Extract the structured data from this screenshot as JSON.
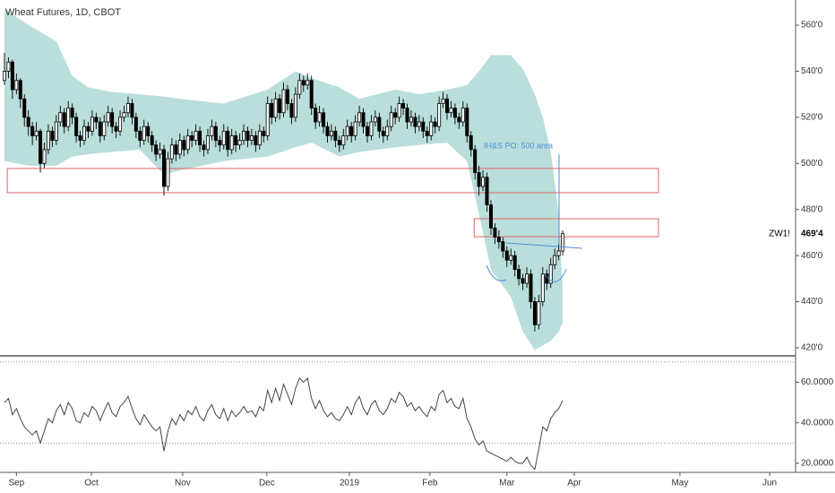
{
  "chart_data": [
    {
      "type": "candlestick",
      "title": "Wheat Futures, 1D, CBOT",
      "up_color": "#ffffff",
      "down_color": "#000000",
      "wick_color": "#000000",
      "band_color": "#b9dedb",
      "zone_color": "#e06666",
      "xlim": [
        -1.12,
        198.4
      ],
      "xticks": [
        {
          "value": 3,
          "label": "Sep"
        },
        {
          "value": 21.8,
          "label": "Oct"
        },
        {
          "value": 44.7,
          "label": "Nov"
        },
        {
          "value": 65.8,
          "label": "Dec"
        },
        {
          "value": 86.5,
          "label": "2019"
        },
        {
          "value": 106.7,
          "label": "Feb"
        },
        {
          "value": 126,
          "label": "Mar"
        },
        {
          "value": 142.9,
          "label": "Apr"
        },
        {
          "value": 169.4,
          "label": "May"
        },
        {
          "value": 191.9,
          "label": "Jun"
        }
      ],
      "ylim": [
        416.5,
        570.9
      ],
      "yticks": [
        {
          "value": 560,
          "label": "560'0"
        },
        {
          "value": 540,
          "label": "540'0"
        },
        {
          "value": 520,
          "label": "520'0"
        },
        {
          "value": 500,
          "label": "500'0"
        },
        {
          "value": 480,
          "label": "480'0"
        },
        {
          "value": 460,
          "label": "460'0"
        },
        {
          "value": 440,
          "label": "440'0"
        },
        {
          "value": 420,
          "label": "420'0"
        }
      ],
      "last": {
        "symbol": "ZW1!",
        "value": 469.5,
        "label": "469'4"
      },
      "annotation": "IH&S PO: 500 area",
      "zones": [
        {
          "from": 0.7,
          "to": 164,
          "top": 497.8,
          "bottom": 487.3
        },
        {
          "from": 117.8,
          "to": 164,
          "top": 476,
          "bottom": 468.2
        }
      ],
      "band": {
        "x": [
          0,
          6,
          13,
          17,
          21,
          27,
          34,
          40,
          44,
          55,
          66,
          73,
          77,
          84,
          89,
          98,
          104,
          111,
          116,
          119,
          122,
          127,
          130,
          133,
          135,
          137,
          139,
          140
        ],
        "upper": [
          567,
          560,
          553,
          538,
          533,
          531,
          530,
          529,
          528,
          526,
          532,
          540,
          537,
          533,
          528,
          532,
          530,
          532,
          534,
          540,
          547,
          547,
          541,
          530,
          520,
          505,
          478,
          445
        ],
        "lower": [
          501,
          499,
          499,
          503,
          504,
          505,
          506,
          495,
          497,
          501,
          503,
          507,
          509,
          503,
          505,
          507,
          508,
          509,
          501,
          478,
          454,
          442,
          427,
          419,
          421,
          423,
          427,
          431
        ]
      },
      "candles": [
        [
          536,
          548,
          534,
          540
        ],
        [
          540,
          546,
          537,
          544
        ],
        [
          544,
          545,
          528,
          532
        ],
        [
          532,
          539,
          530,
          536
        ],
        [
          536,
          537,
          524,
          528
        ],
        [
          528,
          530,
          516,
          520
        ],
        [
          520,
          523,
          512,
          516
        ],
        [
          516,
          518,
          508,
          512
        ],
        [
          512,
          518,
          510,
          514
        ],
        [
          514,
          515,
          496,
          500
        ],
        [
          500,
          509,
          498,
          506
        ],
        [
          506,
          517,
          504,
          514
        ],
        [
          514,
          516,
          507,
          510
        ],
        [
          510,
          521,
          508,
          518
        ],
        [
          518,
          525,
          516,
          522
        ],
        [
          522,
          524,
          513,
          516
        ],
        [
          516,
          527,
          514,
          524
        ],
        [
          524,
          526,
          517,
          520
        ],
        [
          520,
          522,
          509,
          512
        ],
        [
          512,
          514,
          507,
          510
        ],
        [
          510,
          519,
          508,
          516
        ],
        [
          516,
          518,
          511,
          514
        ],
        [
          514,
          523,
          512,
          520
        ],
        [
          520,
          522,
          515,
          518
        ],
        [
          518,
          520,
          509,
          512
        ],
        [
          512,
          521,
          510,
          518
        ],
        [
          518,
          525,
          516,
          522
        ],
        [
          522,
          524,
          513,
          516
        ],
        [
          516,
          518,
          511,
          514
        ],
        [
          514,
          523,
          512,
          520
        ],
        [
          520,
          525,
          518,
          522
        ],
        [
          522,
          529,
          520,
          526
        ],
        [
          526,
          528,
          517,
          520
        ],
        [
          520,
          522,
          511,
          514
        ],
        [
          514,
          516,
          507,
          510
        ],
        [
          510,
          519,
          508,
          516
        ],
        [
          516,
          518,
          509,
          512
        ],
        [
          512,
          514,
          505,
          508
        ],
        [
          508,
          510,
          501,
          504
        ],
        [
          504,
          509,
          502,
          506
        ],
        [
          506,
          508,
          486,
          490
        ],
        [
          490,
          505,
          488,
          502
        ],
        [
          502,
          511,
          500,
          508
        ],
        [
          508,
          510,
          501,
          504
        ],
        [
          504,
          513,
          502,
          510
        ],
        [
          510,
          512,
          503,
          506
        ],
        [
          506,
          515,
          504,
          512
        ],
        [
          512,
          514,
          507,
          510
        ],
        [
          510,
          517,
          508,
          514
        ],
        [
          514,
          516,
          505,
          508
        ],
        [
          508,
          510,
          503,
          506
        ],
        [
          506,
          515,
          504,
          512
        ],
        [
          512,
          519,
          510,
          516
        ],
        [
          516,
          518,
          507,
          510
        ],
        [
          510,
          512,
          505,
          508
        ],
        [
          508,
          517,
          506,
          514
        ],
        [
          514,
          516,
          503,
          506
        ],
        [
          506,
          515,
          504,
          512
        ],
        [
          512,
          514,
          505,
          508
        ],
        [
          508,
          513,
          506,
          510
        ],
        [
          510,
          517,
          508,
          514
        ],
        [
          514,
          516,
          507,
          510
        ],
        [
          510,
          515,
          508,
          512
        ],
        [
          512,
          514,
          505,
          508
        ],
        [
          508,
          517,
          506,
          514
        ],
        [
          514,
          516,
          509,
          512
        ],
        [
          512,
          529,
          510,
          526
        ],
        [
          526,
          528,
          517,
          520
        ],
        [
          520,
          531,
          518,
          528
        ],
        [
          528,
          530,
          519,
          522
        ],
        [
          522,
          535,
          520,
          532
        ],
        [
          532,
          534,
          523,
          526
        ],
        [
          526,
          528,
          517,
          520
        ],
        [
          520,
          533,
          518,
          530
        ],
        [
          530,
          539,
          528,
          536
        ],
        [
          536,
          538,
          531,
          534
        ],
        [
          534,
          539,
          532,
          536
        ],
        [
          536,
          538,
          521,
          524
        ],
        [
          524,
          526,
          515,
          518
        ],
        [
          518,
          525,
          516,
          522
        ],
        [
          522,
          524,
          513,
          516
        ],
        [
          516,
          518,
          509,
          512
        ],
        [
          512,
          517,
          510,
          514
        ],
        [
          514,
          516,
          507,
          510
        ],
        [
          510,
          512,
          505,
          508
        ],
        [
          508,
          515,
          506,
          512
        ],
        [
          512,
          519,
          510,
          516
        ],
        [
          516,
          518,
          509,
          512
        ],
        [
          512,
          521,
          510,
          518
        ],
        [
          518,
          525,
          516,
          522
        ],
        [
          522,
          524,
          513,
          516
        ],
        [
          516,
          518,
          509,
          512
        ],
        [
          512,
          521,
          510,
          518
        ],
        [
          518,
          523,
          516,
          520
        ],
        [
          520,
          522,
          511,
          514
        ],
        [
          514,
          516,
          509,
          512
        ],
        [
          512,
          519,
          510,
          516
        ],
        [
          516,
          525,
          514,
          522
        ],
        [
          522,
          524,
          517,
          520
        ],
        [
          520,
          529,
          518,
          526
        ],
        [
          526,
          528,
          521,
          524
        ],
        [
          524,
          526,
          515,
          518
        ],
        [
          518,
          523,
          516,
          520
        ],
        [
          520,
          522,
          513,
          516
        ],
        [
          516,
          521,
          514,
          518
        ],
        [
          518,
          520,
          511,
          514
        ],
        [
          514,
          516,
          509,
          512
        ],
        [
          512,
          521,
          510,
          518
        ],
        [
          518,
          520,
          513,
          516
        ],
        [
          516,
          529,
          514,
          526
        ],
        [
          526,
          531,
          524,
          528
        ],
        [
          528,
          530,
          519,
          522
        ],
        [
          522,
          527,
          520,
          524
        ],
        [
          524,
          526,
          517,
          520
        ],
        [
          520,
          522,
          515,
          518
        ],
        [
          518,
          527,
          516,
          524
        ],
        [
          524,
          526,
          509,
          512
        ],
        [
          512,
          514,
          503,
          506
        ],
        [
          506,
          508,
          493,
          496
        ],
        [
          496,
          499,
          486,
          490
        ],
        [
          490,
          497,
          488,
          494
        ],
        [
          494,
          496,
          479,
          482
        ],
        [
          482,
          484,
          469,
          472
        ],
        [
          472,
          474,
          465,
          468
        ],
        [
          468,
          471,
          463,
          466
        ],
        [
          466,
          468,
          459,
          462
        ],
        [
          462,
          464,
          455,
          458
        ],
        [
          458,
          463,
          456,
          460
        ],
        [
          460,
          462,
          451,
          454
        ],
        [
          454,
          456,
          447,
          450
        ],
        [
          450,
          452,
          445,
          448
        ],
        [
          448,
          455,
          446,
          452
        ],
        [
          452,
          454,
          437,
          440
        ],
        [
          440,
          442,
          427,
          430
        ],
        [
          430,
          443,
          428,
          440
        ],
        [
          440,
          455,
          438,
          452
        ],
        [
          452,
          454,
          445,
          448
        ],
        [
          448,
          459,
          446,
          456
        ],
        [
          456,
          463,
          454,
          460
        ],
        [
          460,
          465,
          458,
          462
        ],
        [
          462,
          471,
          460,
          469.5
        ]
      ]
    },
    {
      "type": "line",
      "color": "#444444",
      "ylim": [
        15.5,
        72.6
      ],
      "yticks": [
        {
          "value": 60,
          "label": "60.0000"
        },
        {
          "value": 40,
          "label": "40.0000"
        },
        {
          "value": 20,
          "label": "20.0000"
        }
      ],
      "levels": [
        70,
        30
      ],
      "values": [
        50,
        52,
        44,
        47,
        42,
        38,
        36,
        34,
        36,
        30,
        36,
        42,
        40,
        46,
        49,
        44,
        50,
        47,
        41,
        40,
        45,
        43,
        48,
        46,
        41,
        46,
        50,
        45,
        43,
        48,
        50,
        53,
        47,
        42,
        39,
        44,
        41,
        38,
        36,
        38,
        26,
        36,
        42,
        39,
        44,
        41,
        46,
        44,
        48,
        43,
        41,
        46,
        49,
        44,
        42,
        47,
        41,
        46,
        43,
        45,
        48,
        45,
        46,
        43,
        48,
        46,
        56,
        50,
        57,
        51,
        59,
        54,
        49,
        57,
        62,
        60,
        62,
        52,
        47,
        51,
        46,
        43,
        45,
        42,
        41,
        44,
        48,
        44,
        50,
        53,
        47,
        44,
        49,
        51,
        46,
        44,
        47,
        52,
        50,
        55,
        53,
        48,
        50,
        46,
        48,
        45,
        43,
        48,
        46,
        54,
        56,
        50,
        52,
        48,
        47,
        52,
        42,
        38,
        32,
        29,
        31,
        26,
        25,
        24,
        23,
        22,
        21,
        23,
        21,
        20,
        20,
        23,
        19,
        17,
        27,
        38,
        36,
        42,
        45,
        47,
        51
      ]
    }
  ]
}
